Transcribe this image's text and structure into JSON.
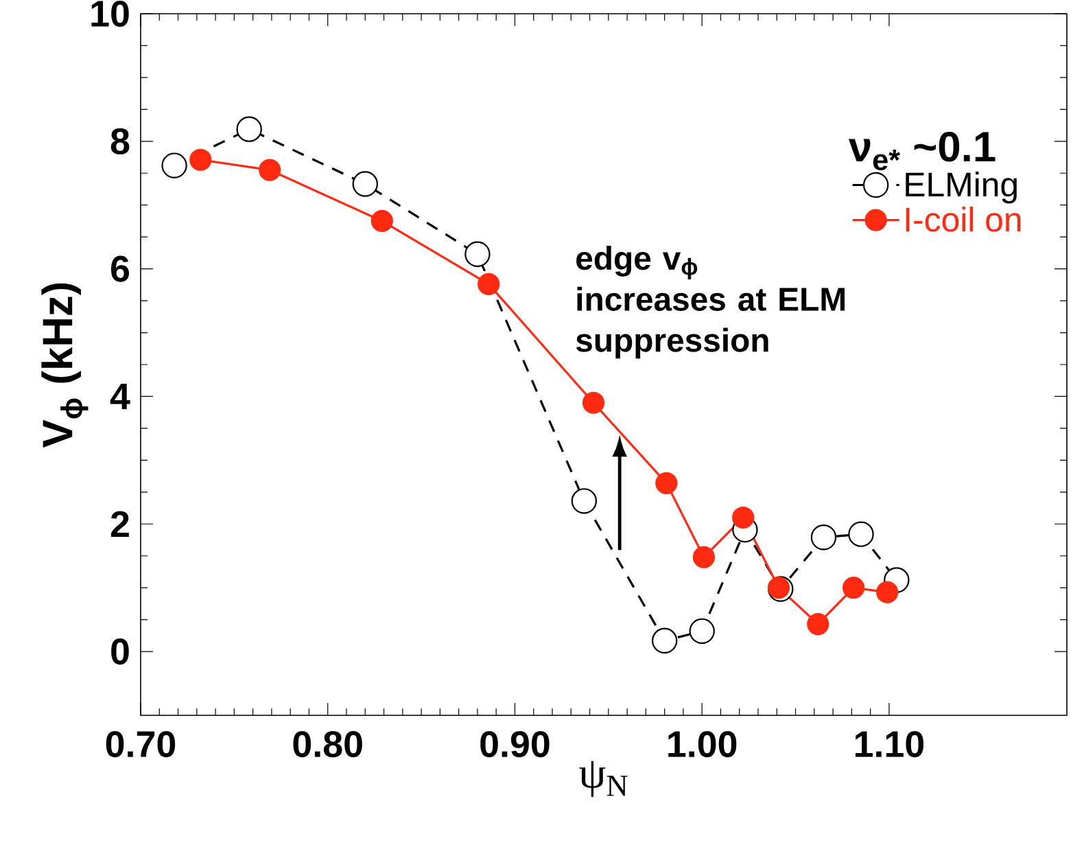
{
  "chart_data": {
    "type": "line",
    "xlabel": "ψ$_{N}$",
    "ylabel": "V$_{ϕ}$ (kHz)",
    "legend_title": "ν$_{e*}$ ~0.1",
    "xlim": [
      0.7,
      1.195
    ],
    "ylim": [
      -1,
      10
    ],
    "xticks": [
      {
        "value": 0.7,
        "label": "0.70"
      },
      {
        "value": 0.8,
        "label": "0.80"
      },
      {
        "value": 0.9,
        "label": "0.90"
      },
      {
        "value": 1.0,
        "label": "1.00"
      },
      {
        "value": 1.1,
        "label": "1.10"
      }
    ],
    "yticks": [
      0,
      2,
      4,
      6,
      8,
      10
    ],
    "legend": "top right",
    "marker": "circle",
    "grid": false,
    "annotations": [
      {
        "text": "edge v$_{ϕ}$ increases at ELM suppression",
        "x": 0.956,
        "y": 3.4
      }
    ],
    "series": [
      {
        "name": "ELMing",
        "color": "#000000",
        "line_style": "dashed",
        "x": [
          0.718,
          0.758,
          0.82,
          0.88,
          0.937,
          0.98,
          1.0,
          1.023,
          1.042,
          1.065,
          1.085,
          1.104
        ],
        "values": [
          7.62,
          8.19,
          7.33,
          6.23,
          2.36,
          0.17,
          0.32,
          1.91,
          0.98,
          1.79,
          1.84,
          1.12
        ]
      },
      {
        "name": "I-coil on",
        "color": "#ff2a10",
        "line_style": "solid",
        "x": [
          0.732,
          0.769,
          0.829,
          0.886,
          0.942,
          0.981,
          1.001,
          1.022,
          1.041,
          1.062,
          1.081,
          1.099
        ],
        "values": [
          7.71,
          7.55,
          6.75,
          5.76,
          3.9,
          2.64,
          1.48,
          2.1,
          1.0,
          0.43,
          1.0,
          0.93
        ]
      }
    ]
  }
}
